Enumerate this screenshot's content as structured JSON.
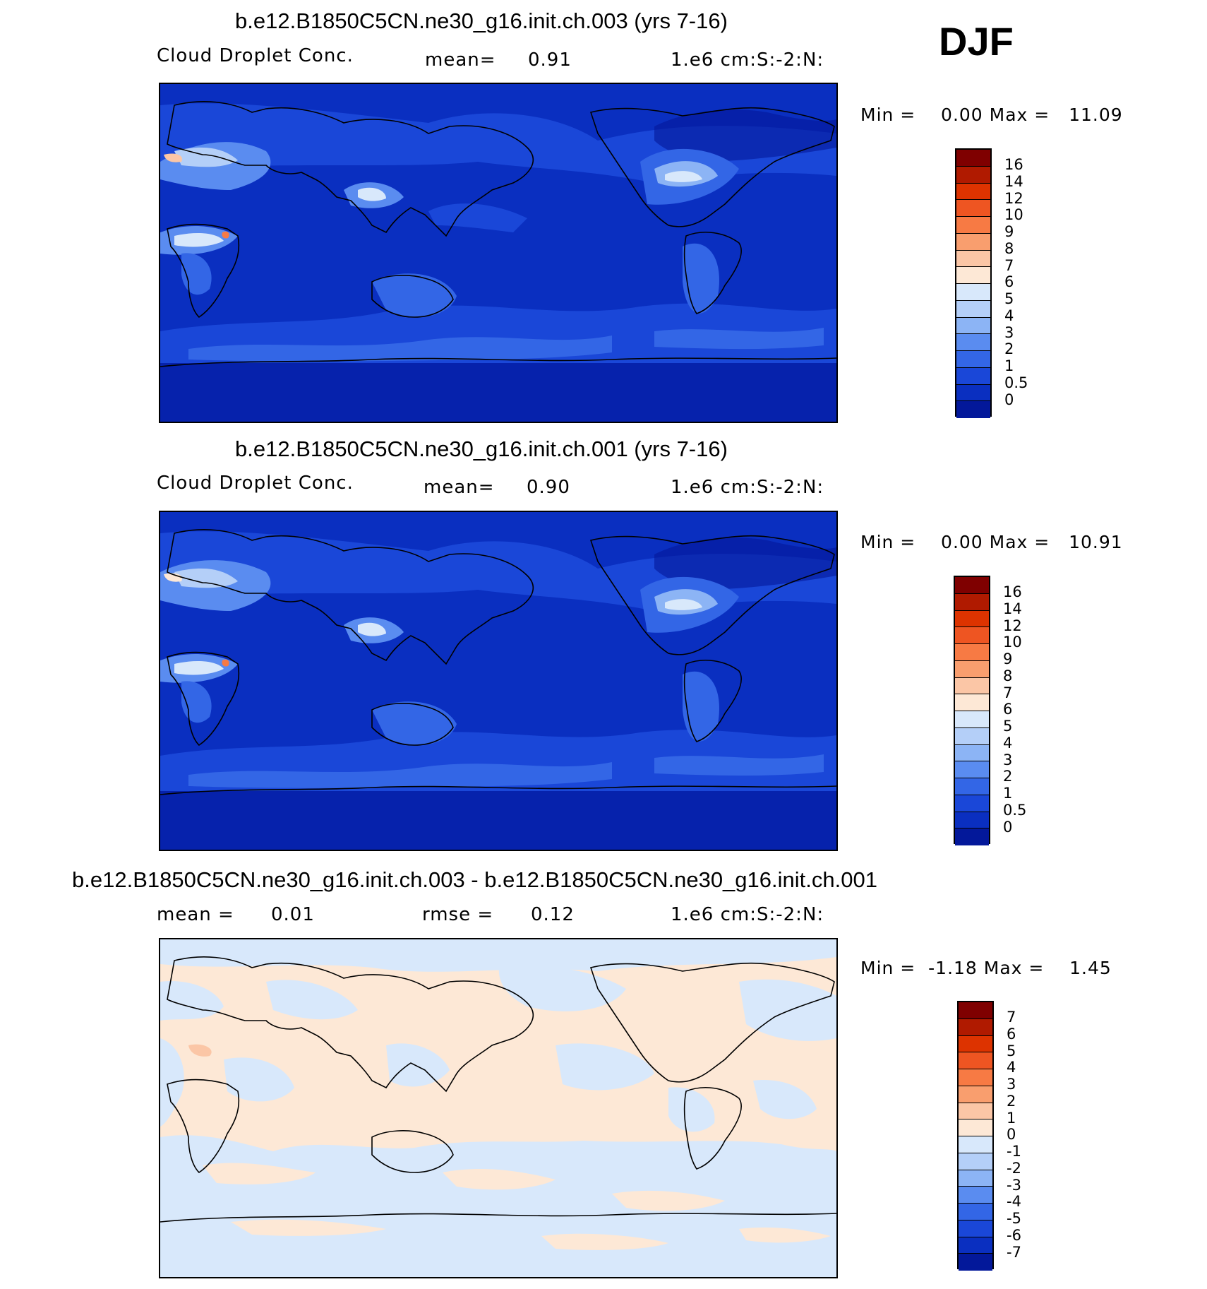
{
  "season": "DJF",
  "panels": [
    {
      "title": "b.e12.B1850C5CN.ne30_g16.init.ch.003 (yrs 7-16)",
      "left_label": "Cloud Droplet Conc.",
      "mid_label": "mean=",
      "mid_value": "0.91",
      "units": "1.e6 cm:S:-2:N:",
      "min_max": "Min =    0.00 Max =   11.09",
      "colorbar_labels": [
        "16",
        "14",
        "12",
        "10",
        "9",
        "8",
        "7",
        "6",
        "5",
        "4",
        "3",
        "2",
        "1",
        "0.5",
        "0"
      ]
    },
    {
      "title": "b.e12.B1850C5CN.ne30_g16.init.ch.001 (yrs 7-16)",
      "left_label": "Cloud Droplet Conc.",
      "mid_label": "mean=",
      "mid_value": "0.90",
      "units": "1.e6 cm:S:-2:N:",
      "min_max": "Min =    0.00 Max =   10.91",
      "colorbar_labels": [
        "16",
        "14",
        "12",
        "10",
        "9",
        "8",
        "7",
        "6",
        "5",
        "4",
        "3",
        "2",
        "1",
        "0.5",
        "0"
      ]
    },
    {
      "title": "b.e12.B1850C5CN.ne30_g16.init.ch.003 - b.e12.B1850C5CN.ne30_g16.init.ch.001",
      "left_label": "mean =",
      "left_value": "0.01",
      "mid_label": "rmse =",
      "mid_value": "0.12",
      "units": "1.e6 cm:S:-2:N:",
      "min_max": "Min =  -1.18 Max =    1.45",
      "colorbar_labels": [
        "7",
        "6",
        "5",
        "4",
        "3",
        "2",
        "1",
        "0",
        "-1",
        "-2",
        "-3",
        "-4",
        "-5",
        "-6",
        "-7"
      ]
    }
  ],
  "colors": {
    "abs_scale": [
      "#7f0000",
      "#b01a00",
      "#dd3300",
      "#ee5522",
      "#f77a44",
      "#f99e6e",
      "#fbc6a6",
      "#fde8d6",
      "#d8e8fb",
      "#b4cff8",
      "#8cb4f5",
      "#5a8cf0",
      "#3366e6",
      "#1a47d8",
      "#0a2fc0",
      "#03189a"
    ],
    "diff_scale": [
      "#7f0000",
      "#b01a00",
      "#dd3300",
      "#ee5522",
      "#f77a44",
      "#f99e6e",
      "#fbc6a6",
      "#fde8d6",
      "#d8e8fb",
      "#b4cff8",
      "#8cb4f5",
      "#5a8cf0",
      "#3366e6",
      "#1a47d8",
      "#0a2fc0",
      "#03189a"
    ],
    "map_base": "#0a2fc0",
    "diff_base": "#fde8d6"
  }
}
